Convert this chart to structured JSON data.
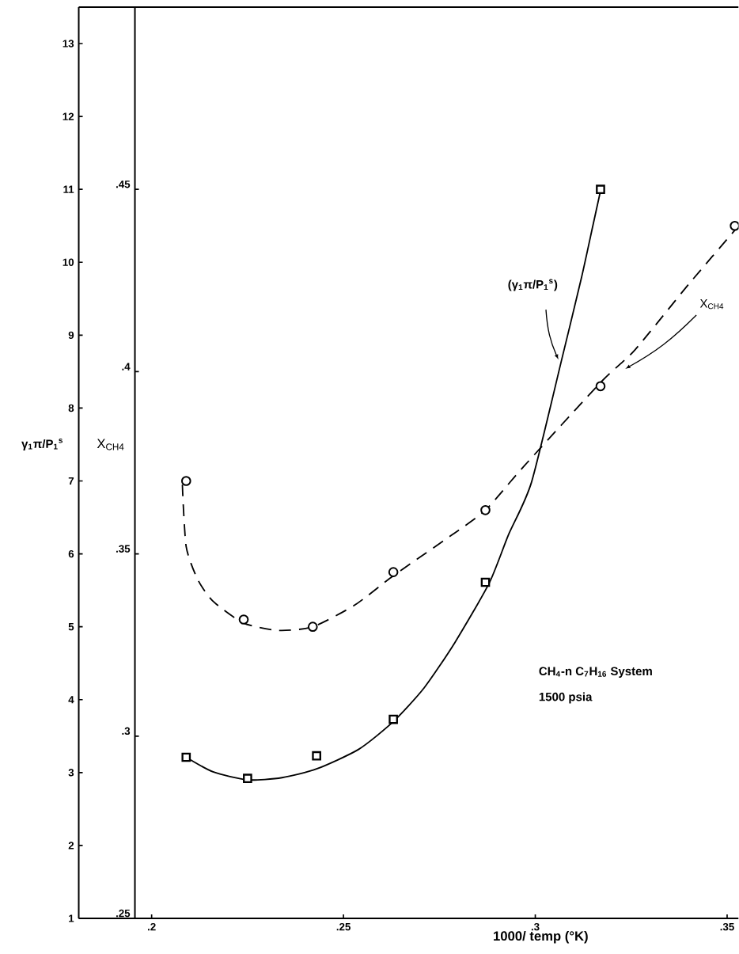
{
  "chart_data": {
    "type": "line",
    "xlabel": "1000/ temp (°K)",
    "ylabel": "γ$_{1}$π/P$_{1}$$^{s}$",
    "y2label": "X$_{CH4}$",
    "xlim": [
      0.181,
      0.353
    ],
    "ylim": [
      1,
      13.5
    ],
    "y2lim": [
      0.25,
      0.5
    ],
    "xticks": [
      {
        "value": 0.2,
        "label": ".2"
      },
      {
        "value": 0.25,
        "label": ".25"
      },
      {
        "value": 0.3,
        "label": ".3"
      },
      {
        "value": 0.35,
        "label": ".35"
      }
    ],
    "yticks": [
      1,
      2,
      3,
      4,
      5,
      6,
      7,
      8,
      9,
      10,
      11,
      12,
      13
    ],
    "y2ticks": [
      {
        "value": 0.25,
        "label": ".25"
      },
      {
        "value": 0.3,
        "label": ".3"
      },
      {
        "value": 0.35,
        "label": ".35"
      },
      {
        "value": 0.4,
        "label": ".4"
      },
      {
        "value": 0.45,
        "label": ".45"
      }
    ],
    "annotations": [
      "CH$_{4}$-n C$_{7}$H$_{16}$ System",
      "1500 psia"
    ],
    "series": [
      {
        "name": "(γ$_{1}$π/P$_{1}$$^{s}$)",
        "color": "#000000",
        "line_style": "solid",
        "marker": "none",
        "x": [
          0.209,
          0.216,
          0.225,
          0.234,
          0.243,
          0.254,
          0.263,
          0.271,
          0.279,
          0.288,
          0.293,
          0.299,
          0.307,
          0.312,
          0.315,
          0.317
        ],
        "values": [
          3.21,
          3.01,
          2.9,
          2.93,
          3.05,
          3.32,
          3.7,
          4.16,
          4.78,
          5.6,
          6.26,
          6.98,
          8.69,
          9.78,
          10.5,
          10.98
        ]
      },
      {
        "name": "X$_{CH4}$",
        "color": "#000000",
        "line_style": "dashed",
        "marker": "none",
        "axis": "y2",
        "x": [
          0.208,
          0.209,
          0.212,
          0.216,
          0.224,
          0.233,
          0.242,
          0.253,
          0.263,
          0.278,
          0.287,
          0.297,
          0.317,
          0.326,
          0.34,
          0.353
        ],
        "values": [
          0.369,
          0.352,
          0.343,
          0.337,
          0.331,
          0.329,
          0.33,
          0.336,
          0.344,
          0.355,
          0.362,
          0.374,
          0.397,
          0.406,
          0.424,
          0.44
        ]
      },
      {
        "type": "scatter",
        "color": "#000000",
        "marker": "square",
        "x": [
          0.209,
          0.225,
          0.243,
          0.263,
          0.287,
          0.317
        ],
        "values": [
          3.21,
          2.92,
          3.23,
          3.73,
          5.61,
          11.0
        ]
      },
      {
        "type": "scatter",
        "color": "#000000",
        "marker": "circle",
        "axis": "y2",
        "x": [
          0.209,
          0.224,
          0.242,
          0.263,
          0.287,
          0.317,
          0.352
        ],
        "values": [
          0.37,
          0.332,
          0.33,
          0.345,
          0.362,
          0.396,
          0.44
        ]
      }
    ]
  }
}
